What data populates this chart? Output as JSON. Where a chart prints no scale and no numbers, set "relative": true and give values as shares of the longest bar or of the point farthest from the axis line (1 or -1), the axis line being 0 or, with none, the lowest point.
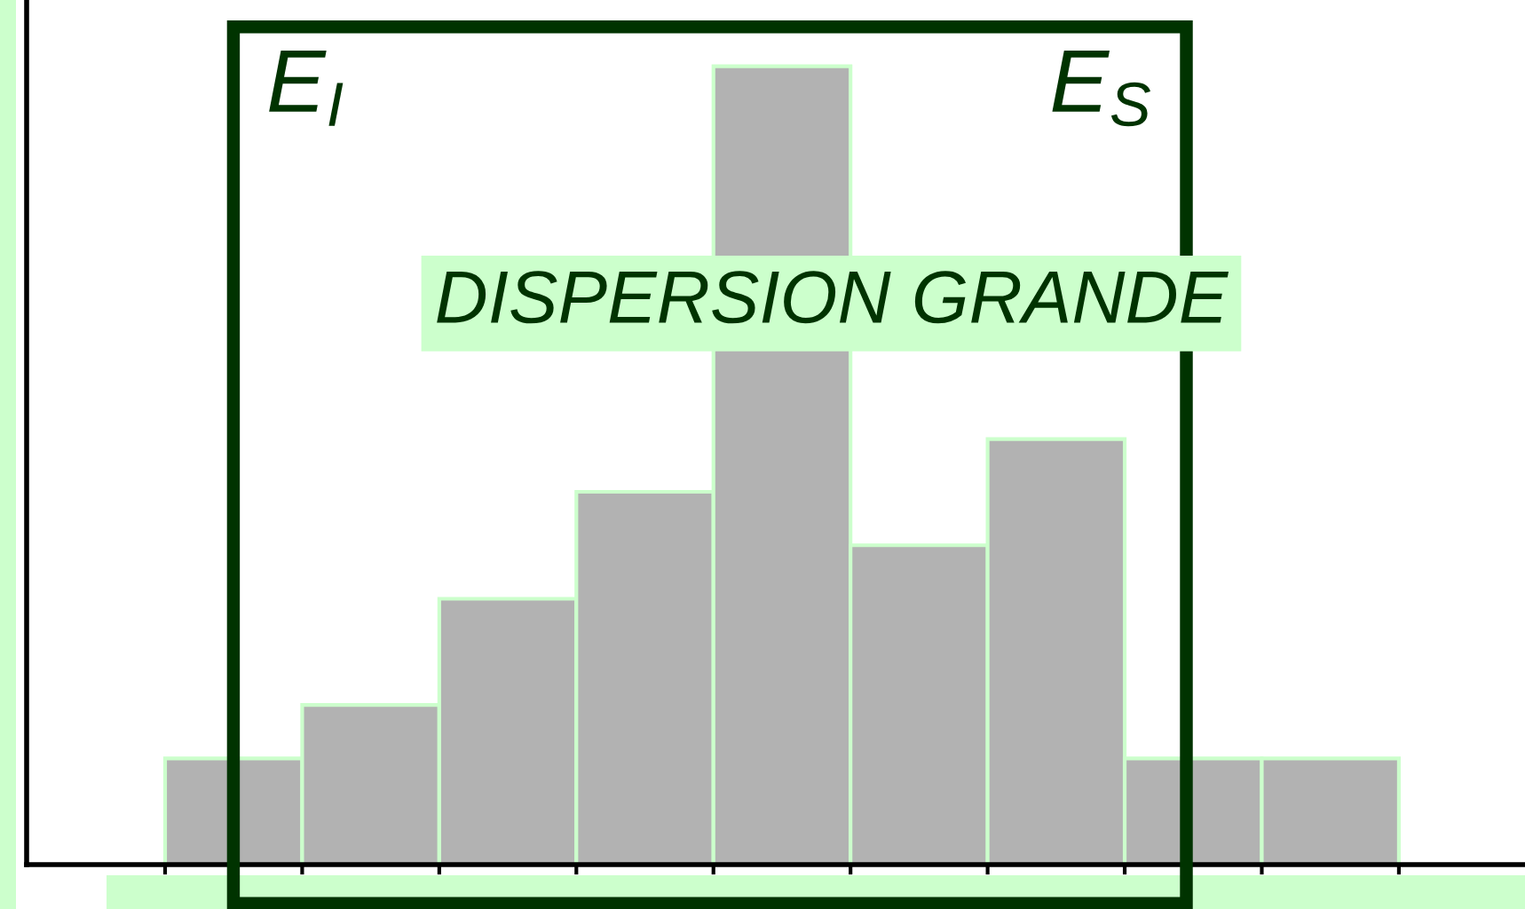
{
  "chart_data": {
    "type": "bar",
    "relative": true,
    "categories": [
      null,
      null,
      null,
      null,
      null,
      null,
      null,
      null,
      null
    ],
    "values": [
      0.133,
      0.2,
      0.333,
      0.467,
      1,
      0.4,
      0.533,
      0.133,
      0.133
    ],
    "color": "#b2b2b2",
    "annotations": [
      "E$_{I}$",
      "E$_{S}$",
      "DISPERSION GRANDE"
    ],
    "legend": false,
    "grid": false
  }
}
